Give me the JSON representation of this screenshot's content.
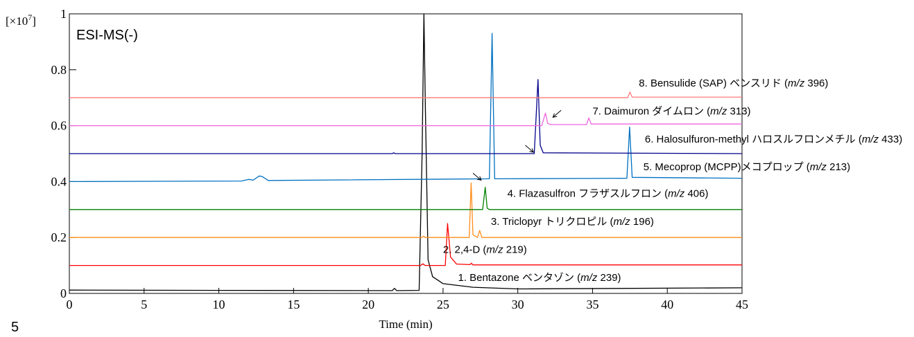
{
  "page_number": "5",
  "chart_data": {
    "type": "line",
    "mode_label": "ESI-MS(-)",
    "xlabel": "Time (min)",
    "ylabel_scale": "[×10",
    "ylabel_exponent": "7",
    "ylabel_close": "]",
    "xlim": [
      0,
      45
    ],
    "ylim": [
      0,
      1
    ],
    "x_ticks": [
      {
        "value": 0,
        "label": "0"
      },
      {
        "value": 5,
        "label": "5"
      },
      {
        "value": 10,
        "label": "10"
      },
      {
        "value": 15,
        "label": "15"
      },
      {
        "value": 20,
        "label": "20"
      },
      {
        "value": 25,
        "label": "25"
      },
      {
        "value": 30,
        "label": "30"
      },
      {
        "value": 35,
        "label": "35"
      },
      {
        "value": 40,
        "label": "40"
      },
      {
        "value": 45,
        "label": "45"
      }
    ],
    "y_ticks": [
      {
        "value": 0,
        "label": "0"
      },
      {
        "value": 0.2,
        "label": "0.2"
      },
      {
        "value": 0.4,
        "label": "0.4"
      },
      {
        "value": 0.6,
        "label": "0.6"
      },
      {
        "value": 0.8,
        "label": "0.8"
      },
      {
        "value": 1,
        "label": "1"
      }
    ],
    "series": [
      {
        "name_prefix": "1. Bentazone ベンタゾン (",
        "name_italic": "m/z",
        "name_suffix": " 239)",
        "color": "#000000",
        "label_at": [
          26.0,
          0.045
        ],
        "points": [
          [
            0,
            0.012
          ],
          [
            10,
            0.011
          ],
          [
            21.6,
            0.01
          ],
          [
            21.75,
            0.018
          ],
          [
            21.9,
            0.01
          ],
          [
            23.4,
            0.011
          ],
          [
            23.6,
            0.5
          ],
          [
            23.72,
            1.0
          ],
          [
            23.82,
            0.65
          ],
          [
            24.0,
            0.12
          ],
          [
            24.3,
            0.06
          ],
          [
            25,
            0.035
          ],
          [
            27,
            0.022
          ],
          [
            30,
            0.016
          ],
          [
            45,
            0.02
          ]
        ],
        "peaks": []
      },
      {
        "name_prefix": "2. 2,4-D (",
        "name_italic": "m/z",
        "name_suffix": " 219)",
        "color": "#ff0000",
        "label_at": [
          25.0,
          0.145
        ],
        "points": [
          [
            0,
            0.1
          ],
          [
            23.5,
            0.1
          ],
          [
            23.65,
            0.106
          ],
          [
            23.8,
            0.1
          ],
          [
            25.15,
            0.1
          ],
          [
            25.3,
            0.25
          ],
          [
            25.5,
            0.13
          ],
          [
            25.9,
            0.105
          ],
          [
            26.8,
            0.103
          ],
          [
            26.9,
            0.108
          ],
          [
            27.0,
            0.102
          ],
          [
            45,
            0.102
          ]
        ],
        "peaks": []
      },
      {
        "name_prefix": "3. Triclopyr トリクロピル (",
        "name_italic": "m/z",
        "name_suffix": " 196)",
        "color": "#ff8c1a",
        "label_at": [
          28.2,
          0.245
        ],
        "points": [
          [
            0,
            0.2
          ],
          [
            23.6,
            0.2
          ],
          [
            23.7,
            0.205
          ],
          [
            23.8,
            0.2
          ],
          [
            26.75,
            0.2
          ],
          [
            26.88,
            0.395
          ],
          [
            27.0,
            0.21
          ],
          [
            27.3,
            0.2
          ],
          [
            27.45,
            0.225
          ],
          [
            27.6,
            0.2
          ],
          [
            45,
            0.2
          ]
        ],
        "peaks": []
      },
      {
        "name_prefix": "4. Flazasulfron フラザスルフロン (",
        "name_italic": "m/z",
        "name_suffix": " 406)",
        "color": "#008000",
        "label_at": [
          29.3,
          0.345
        ],
        "points": [
          [
            0,
            0.3
          ],
          [
            27.65,
            0.3
          ],
          [
            27.82,
            0.38
          ],
          [
            27.95,
            0.305
          ],
          [
            28.1,
            0.3
          ],
          [
            45,
            0.3
          ]
        ],
        "peaks": []
      },
      {
        "name_prefix": "5. Mecoprop (MCPP)メコプロップ (",
        "name_italic": "m/z",
        "name_suffix": " 213)",
        "color": "#0070c0",
        "label_at": [
          38.4,
          0.44
        ],
        "points": [
          [
            0,
            0.4
          ],
          [
            11.5,
            0.402
          ],
          [
            12.0,
            0.408
          ],
          [
            12.3,
            0.405
          ],
          [
            12.7,
            0.42
          ],
          [
            12.9,
            0.418
          ],
          [
            13.3,
            0.404
          ],
          [
            28.1,
            0.41
          ],
          [
            28.28,
            0.93
          ],
          [
            28.45,
            0.41
          ],
          [
            37.3,
            0.412
          ],
          [
            37.48,
            0.595
          ],
          [
            37.65,
            0.415
          ],
          [
            45,
            0.412
          ]
        ],
        "peaks": []
      },
      {
        "name_prefix": "6. Halosulfuron-methyl ハロスルフロンメチル (",
        "name_italic": "m/z",
        "name_suffix": " 433)",
        "color": "#00008b",
        "label_at": [
          38.5,
          0.54
        ],
        "points": [
          [
            0,
            0.5
          ],
          [
            21.6,
            0.5
          ],
          [
            21.7,
            0.503
          ],
          [
            21.8,
            0.5
          ],
          [
            31.1,
            0.5
          ],
          [
            31.35,
            0.765
          ],
          [
            31.5,
            0.53
          ],
          [
            31.7,
            0.503
          ],
          [
            45,
            0.5
          ]
        ],
        "peaks": []
      },
      {
        "name_prefix": "7. Daimuron ダイムロン (",
        "name_italic": "m/z",
        "name_suffix": " 313)",
        "color": "#ee66dd",
        "label_at": [
          35.0,
          0.64
        ],
        "points": [
          [
            0,
            0.6
          ],
          [
            31.6,
            0.6
          ],
          [
            31.85,
            0.645
          ],
          [
            32.0,
            0.608
          ],
          [
            32.2,
            0.604
          ],
          [
            34.6,
            0.604
          ],
          [
            34.75,
            0.628
          ],
          [
            34.9,
            0.606
          ],
          [
            45,
            0.606
          ]
        ],
        "peaks": []
      },
      {
        "name_prefix": "8. Bensulide (SAP) ベンスリド (",
        "name_italic": "m/z",
        "name_suffix": " 396)",
        "color": "#ff7a7a",
        "label_at": [
          38.1,
          0.74
        ],
        "points": [
          [
            0,
            0.7
          ],
          [
            37.35,
            0.7
          ],
          [
            37.5,
            0.72
          ],
          [
            37.65,
            0.702
          ],
          [
            45,
            0.702
          ]
        ],
        "peaks": []
      }
    ],
    "arrows": [
      {
        "from": [
          27.0,
          0.43
        ],
        "to": [
          27.55,
          0.405
        ]
      },
      {
        "from": [
          30.5,
          0.53
        ],
        "to": [
          31.05,
          0.505
        ]
      },
      {
        "from": [
          32.9,
          0.655
        ],
        "to": [
          32.35,
          0.63
        ]
      }
    ]
  }
}
